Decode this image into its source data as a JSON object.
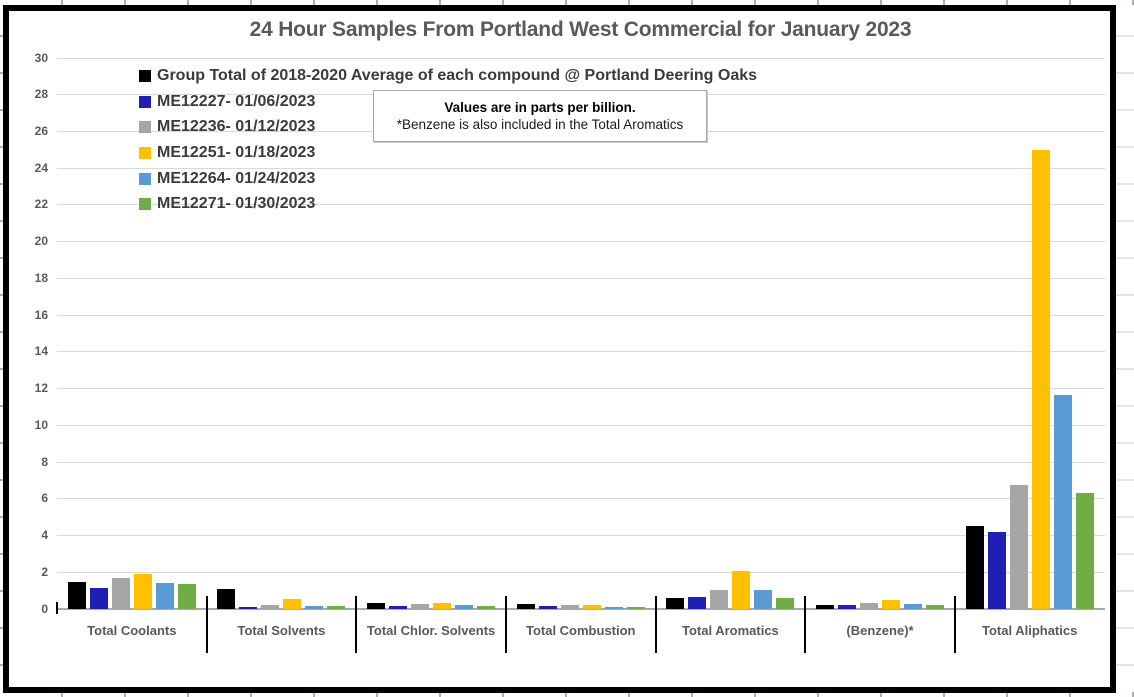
{
  "chart_data": {
    "type": "bar",
    "title": "24 Hour Samples From Portland West Commercial for January 2023",
    "units": "parts per billion",
    "note_lines": [
      "Values are in parts per billion.",
      "*Benzene is also included in the Total Aromatics"
    ],
    "categories": [
      "Total Coolants",
      "Total Solvents",
      "Total Chlor. Solvents",
      "Total Combustion",
      "Total Aromatics",
      "(Benzene)*",
      "Total Aliphatics"
    ],
    "series": [
      {
        "name": "Group Total of 2018-2020 Average of each compound @ Portland Deering Oaks",
        "color": "#000000",
        "values": [
          1.45,
          1.05,
          0.32,
          0.27,
          0.55,
          0.2,
          4.5
        ]
      },
      {
        "name": "ME12227- 01/06/2023",
        "color": "#1f1fb4",
        "values": [
          1.1,
          0.06,
          0.15,
          0.12,
          0.62,
          0.2,
          4.15
        ]
      },
      {
        "name": "ME12236- 01/12/2023",
        "color": "#a6a6a6",
        "values": [
          1.65,
          0.2,
          0.25,
          0.2,
          1.0,
          0.3,
          6.75
        ]
      },
      {
        "name": "ME12251- 01/18/2023",
        "color": "#ffc000",
        "values": [
          1.9,
          0.5,
          0.33,
          0.22,
          2.05,
          0.45,
          24.95
        ]
      },
      {
        "name": "ME12264- 01/24/2023",
        "color": "#5b9bd5",
        "values": [
          1.38,
          0.14,
          0.22,
          0.08,
          1.0,
          0.25,
          11.65
        ]
      },
      {
        "name": "ME12271- 01/30/2023",
        "color": "#70ad47",
        "values": [
          1.32,
          0.14,
          0.14,
          0.07,
          0.6,
          0.18,
          6.3
        ]
      }
    ],
    "ylim": [
      0,
      30
    ],
    "ytick_step": 2,
    "grid": true,
    "legend_position": "top-left",
    "gridline_color": "#d9d9d9",
    "axis_text_color": "#595959"
  }
}
